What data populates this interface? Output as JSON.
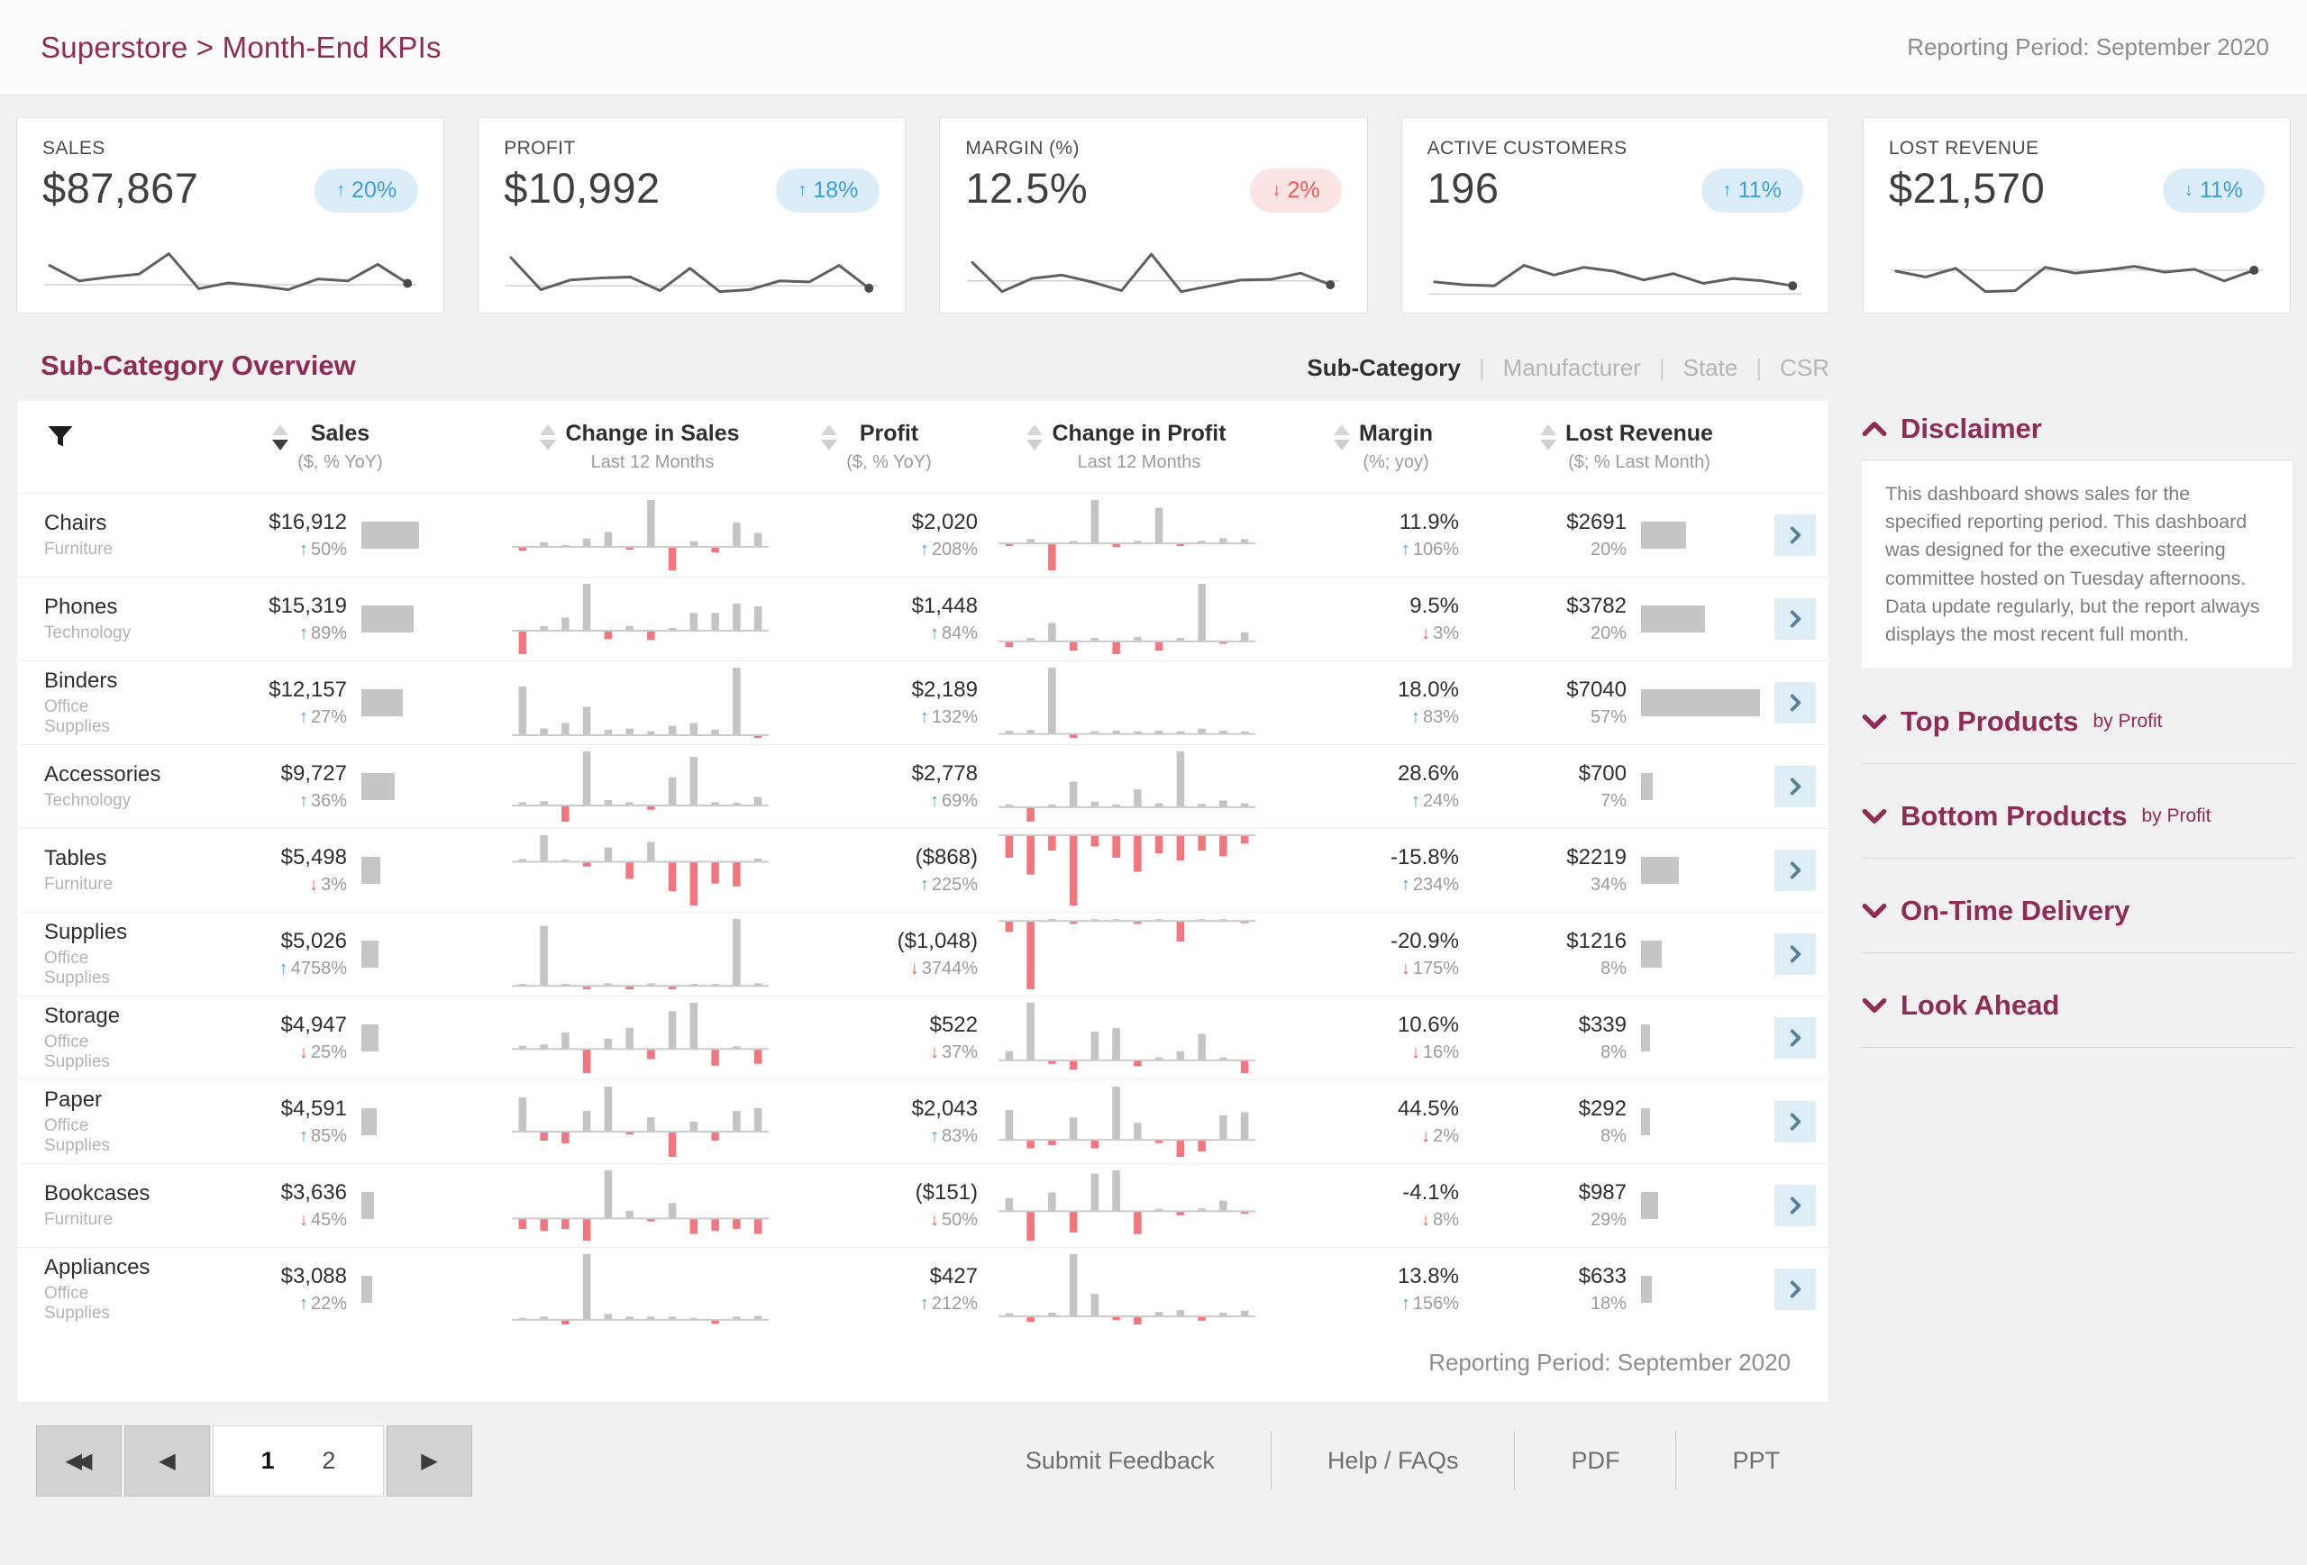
{
  "header": {
    "title": "Superstore > Month-End KPIs",
    "reporting_period": "Reporting Period: September 2020"
  },
  "colors": {
    "accent_maroon": "#8f2c56",
    "positive_blue": "#3f9ede",
    "negative_red": "#ee5a52",
    "bar_gray": "#c4c4c4",
    "bar_red": "#f2767e",
    "badge_blue_bg": "#dcedfa",
    "badge_red_bg": "#fce4e5",
    "row_button_bg": "#ddeef7"
  },
  "kpi_cards": [
    {
      "label": "SALES",
      "value": "$87,867",
      "badge": {
        "dir": "up",
        "text": "20%",
        "tone": "blue"
      },
      "spark": {
        "points": [
          62,
          30,
          38,
          44,
          86,
          14,
          26,
          20,
          12,
          34,
          30,
          64,
          25
        ],
        "baseline": 22
      }
    },
    {
      "label": "PROFIT",
      "value": "$10,992",
      "badge": {
        "dir": "up",
        "text": "18%",
        "tone": "blue"
      },
      "spark": {
        "points": [
          78,
          12,
          32,
          36,
          38,
          10,
          56,
          8,
          12,
          30,
          28,
          62,
          15
        ],
        "baseline": 20
      }
    },
    {
      "label": "MARGIN (%)",
      "value": "12.5%",
      "badge": {
        "dir": "down",
        "text": "2%",
        "tone": "red"
      },
      "spark": {
        "points": [
          68,
          8,
          35,
          42,
          28,
          10,
          85,
          8,
          20,
          32,
          33,
          46,
          22
        ],
        "baseline": 30
      }
    },
    {
      "label": "ACTIVE CUSTOMERS",
      "value": "196",
      "badge": {
        "dir": "up",
        "text": "11%",
        "tone": "blue"
      },
      "spark": {
        "points": [
          28,
          22,
          20,
          62,
          42,
          58,
          50,
          32,
          45,
          25,
          35,
          30,
          20
        ],
        "baseline": 3
      }
    },
    {
      "label": "LOST REVENUE",
      "value": "$21,570",
      "badge": {
        "dir": "down",
        "text": "11%",
        "tone": "blue"
      },
      "spark": {
        "points": [
          50,
          38,
          56,
          8,
          10,
          58,
          46,
          52,
          60,
          48,
          54,
          30,
          52
        ],
        "baseline": 52
      }
    }
  ],
  "section": {
    "title": "Sub-Category Overview",
    "tabs": [
      {
        "label": "Sub-Category",
        "active": true
      },
      {
        "label": "Manufacturer",
        "active": false
      },
      {
        "label": "State",
        "active": false
      },
      {
        "label": "CSR",
        "active": false
      }
    ]
  },
  "table": {
    "columns": [
      {
        "title": "Sales",
        "subtitle": "($, % YoY)",
        "sorted": true
      },
      {
        "title": "Change in Sales",
        "subtitle": "Last 12 Months",
        "sorted": false
      },
      {
        "title": "Profit",
        "subtitle": "($, % YoY)",
        "sorted": false
      },
      {
        "title": "Change in Profit",
        "subtitle": "Last 12 Months",
        "sorted": false
      },
      {
        "title": "Margin",
        "subtitle": "(%; yoy)",
        "sorted": false
      },
      {
        "title": "Lost Revenue",
        "subtitle": "($; % Last Month)",
        "sorted": false
      }
    ],
    "sales_bar_max": 16912,
    "lost_bar_max": 7040,
    "rows": [
      {
        "name": "Chairs",
        "category": "Furniture",
        "sales": "$16,912",
        "sales_dir": "up",
        "sales_pct": "50%",
        "sales_bar": 16912,
        "sales_change": [
          -0.08,
          0.1,
          0.04,
          0.18,
          0.32,
          -0.06,
          1,
          -0.5,
          0.12,
          -0.12,
          0.52,
          0.3
        ],
        "profit": "$2,020",
        "profit_dir": "up",
        "profit_pct": "208%",
        "profit_change": [
          -0.06,
          0.1,
          -0.62,
          0.06,
          1,
          -0.08,
          0.06,
          0.82,
          -0.06,
          0.06,
          0.12,
          0.1
        ],
        "margin": "11.9%",
        "margin_dir": "up",
        "margin_pct": "106%",
        "lost": "$2691",
        "lost_pct": "20%",
        "lost_bar": 2691
      },
      {
        "name": "Phones",
        "category": "Technology",
        "sales": "$15,319",
        "sales_dir": "up",
        "sales_pct": "89%",
        "sales_bar": 15319,
        "sales_change": [
          -0.5,
          0.1,
          0.28,
          1,
          -0.18,
          0.1,
          -0.2,
          0.06,
          0.38,
          0.38,
          0.58,
          0.52
        ],
        "profit": "$1,448",
        "profit_dir": "up",
        "profit_pct": "84%",
        "profit_change": [
          -0.1,
          0.06,
          0.32,
          -0.16,
          0.06,
          -0.22,
          0.08,
          -0.16,
          0.06,
          1,
          -0.04,
          0.16
        ],
        "margin": "9.5%",
        "margin_dir": "down",
        "margin_pct": "3%",
        "lost": "$3782",
        "lost_pct": "20%",
        "lost_bar": 3782
      },
      {
        "name": "Binders",
        "category": "Office Supplies",
        "sales": "$12,157",
        "sales_dir": "up",
        "sales_pct": "27%",
        "sales_bar": 12157,
        "sales_change": [
          0.72,
          0.1,
          0.18,
          0.42,
          0.08,
          0.1,
          0.06,
          0.14,
          0.18,
          0.08,
          1,
          -0.04
        ],
        "profit": "$2,189",
        "profit_dir": "up",
        "profit_pct": "132%",
        "profit_change": [
          0.05,
          0.06,
          1,
          -0.06,
          0.04,
          0.05,
          0.04,
          0.05,
          0.04,
          0.08,
          0.05,
          0.04
        ],
        "margin": "18.0%",
        "margin_dir": "up",
        "margin_pct": "83%",
        "lost": "$7040",
        "lost_pct": "57%",
        "lost_bar": 7040
      },
      {
        "name": "Accessories",
        "category": "Technology",
        "sales": "$9,727",
        "sales_dir": "up",
        "sales_pct": "36%",
        "sales_bar": 9727,
        "sales_change": [
          0.06,
          0.08,
          -0.3,
          1,
          0.1,
          0.06,
          -0.08,
          0.52,
          0.9,
          0.06,
          0.05,
          0.16
        ],
        "profit": "$2,778",
        "profit_dir": "up",
        "profit_pct": "69%",
        "profit_change": [
          0.05,
          -0.26,
          0.05,
          0.46,
          0.1,
          0.05,
          0.32,
          0.07,
          1,
          0.06,
          0.12,
          0.07
        ],
        "margin": "28.6%",
        "margin_dir": "up",
        "margin_pct": "24%",
        "lost": "$700",
        "lost_pct": "7%",
        "lost_bar": 700
      },
      {
        "name": "Tables",
        "category": "Furniture",
        "sales": "$5,498",
        "sales_dir": "down",
        "sales_pct": "3%",
        "sales_bar": 5498,
        "sales_change": [
          0.06,
          0.56,
          0.05,
          -0.1,
          0.3,
          -0.36,
          0.42,
          -0.62,
          -0.92,
          -0.46,
          -0.52,
          0.07
        ],
        "profit": "($868)",
        "profit_dir": "up",
        "profit_pct": "225%",
        "profit_change": [
          -0.32,
          -0.56,
          -0.22,
          -1,
          -0.16,
          -0.32,
          -0.52,
          -0.26,
          -0.36,
          -0.22,
          -0.3,
          -0.12
        ],
        "margin": "-15.8%",
        "margin_dir": "up",
        "margin_pct": "234%",
        "lost": "$2219",
        "lost_pct": "34%",
        "lost_bar": 2219
      },
      {
        "name": "Supplies",
        "category": "Office Supplies",
        "sales": "$5,026",
        "sales_dir": "up",
        "sales_pct": "4758%",
        "sales_bar": 5026,
        "sales_change": [
          0.03,
          0.9,
          0.03,
          -0.05,
          0.04,
          -0.05,
          0.04,
          -0.05,
          0.03,
          0.03,
          1,
          0.04
        ],
        "profit": "($1,048)",
        "profit_dir": "down",
        "profit_pct": "3744%",
        "profit_change": [
          -0.16,
          -1,
          0.03,
          -0.04,
          0.02,
          0.02,
          -0.04,
          0.02,
          -0.3,
          0.02,
          0.02,
          -0.03
        ],
        "margin": "-20.9%",
        "margin_dir": "down",
        "margin_pct": "175%",
        "lost": "$1216",
        "lost_pct": "8%",
        "lost_bar": 1216
      },
      {
        "name": "Storage",
        "category": "Office Supplies",
        "sales": "$4,947",
        "sales_dir": "down",
        "sales_pct": "25%",
        "sales_bar": 4947,
        "sales_change": [
          0.07,
          0.1,
          0.36,
          -0.52,
          0.22,
          0.46,
          -0.22,
          0.82,
          1,
          -0.36,
          0.06,
          -0.32
        ],
        "profit": "$522",
        "profit_dir": "down",
        "profit_pct": "37%",
        "profit_change": [
          0.16,
          1,
          -0.06,
          -0.16,
          0.5,
          0.56,
          -0.1,
          0.05,
          0.16,
          0.46,
          0.05,
          -0.22
        ],
        "margin": "10.6%",
        "margin_dir": "down",
        "margin_pct": "16%",
        "lost": "$339",
        "lost_pct": "8%",
        "lost_bar": 339
      },
      {
        "name": "Paper",
        "category": "Office Supplies",
        "sales": "$4,591",
        "sales_dir": "up",
        "sales_pct": "85%",
        "sales_bar": 4591,
        "sales_change": [
          0.76,
          -0.2,
          -0.26,
          0.46,
          1,
          -0.06,
          0.32,
          -0.56,
          0.22,
          -0.2,
          0.46,
          0.52
        ],
        "profit": "$2,043",
        "profit_dir": "up",
        "profit_pct": "83%",
        "profit_change": [
          0.56,
          -0.16,
          -0.1,
          0.42,
          -0.16,
          1,
          0.32,
          -0.06,
          -0.32,
          -0.22,
          0.46,
          0.52
        ],
        "margin": "44.5%",
        "margin_dir": "down",
        "margin_pct": "2%",
        "lost": "$292",
        "lost_pct": "8%",
        "lost_bar": 292
      },
      {
        "name": "Bookcases",
        "category": "Furniture",
        "sales": "$3,636",
        "sales_dir": "down",
        "sales_pct": "45%",
        "sales_bar": 3636,
        "sales_change": [
          -0.22,
          -0.26,
          -0.22,
          -0.46,
          1,
          0.16,
          -0.06,
          0.32,
          -0.32,
          -0.26,
          -0.22,
          -0.32
        ],
        "profit": "($151)",
        "profit_dir": "down",
        "profit_pct": "50%",
        "profit_change": [
          0.32,
          -0.72,
          0.46,
          -0.52,
          0.92,
          1,
          -0.56,
          0.06,
          -0.1,
          0.07,
          0.26,
          -0.06
        ],
        "margin": "-4.1%",
        "margin_dir": "down",
        "margin_pct": "8%",
        "lost": "$987",
        "lost_pct": "29%",
        "lost_bar": 987
      },
      {
        "name": "Appliances",
        "category": "Office Supplies",
        "sales": "$3,088",
        "sales_dir": "up",
        "sales_pct": "22%",
        "sales_bar": 3088,
        "sales_change": [
          0.03,
          0.05,
          -0.07,
          1,
          0.09,
          0.05,
          0.05,
          0.05,
          0.03,
          -0.06,
          0.05,
          0.06
        ],
        "profit": "$427",
        "profit_dir": "up",
        "profit_pct": "212%",
        "profit_change": [
          0.05,
          -0.09,
          0.06,
          1,
          0.36,
          -0.06,
          -0.13,
          0.07,
          0.1,
          -0.07,
          0.06,
          0.09
        ],
        "margin": "13.8%",
        "margin_dir": "up",
        "margin_pct": "156%",
        "lost": "$633",
        "lost_pct": "18%",
        "lost_bar": 633
      }
    ],
    "footer_note": "Reporting Period: September 2020"
  },
  "sidebar": {
    "disclaimer": {
      "title": "Disclaimer",
      "text": "This dashboard shows sales for the specified reporting period. This dashboard was designed for the executive steering committee hosted on Tuesday afternoons. Data update regularly, but the report always displays the most recent full month."
    },
    "sections": [
      {
        "title": "Top Products",
        "suffix": "by Profit"
      },
      {
        "title": "Bottom Products",
        "suffix": "by Profit"
      },
      {
        "title": "On-Time Delivery",
        "suffix": ""
      },
      {
        "title": "Look Ahead",
        "suffix": ""
      }
    ]
  },
  "pagination": {
    "first_icon": "◀◀",
    "prev_icon": "◀",
    "next_icon": "▶",
    "pages": [
      "1",
      "2"
    ],
    "active_page": "1"
  },
  "footer_links": [
    "Submit Feedback",
    "Help / FAQs",
    "PDF",
    "PPT"
  ]
}
